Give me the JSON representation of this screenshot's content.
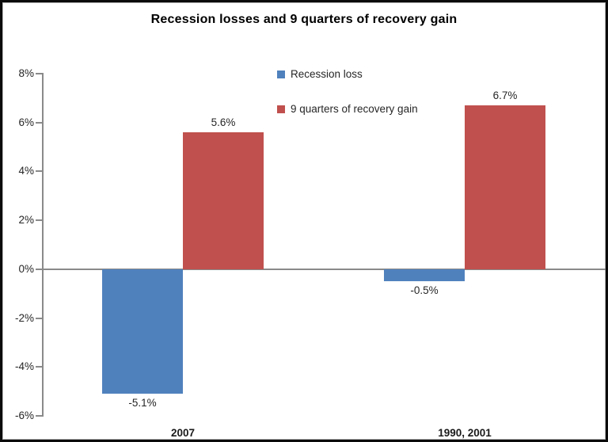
{
  "chart_data": {
    "type": "bar",
    "title": "Recession losses and 9 quarters of recovery gain",
    "categories": [
      "2007",
      "1990, 2001"
    ],
    "series": [
      {
        "name": "Recession loss",
        "color": "#4F81BD",
        "values": [
          -5.1,
          -0.5
        ],
        "labels": [
          "-5.1%",
          "-0.5%"
        ]
      },
      {
        "name": "9 quarters of recovery gain",
        "color": "#C0504D",
        "values": [
          5.6,
          6.7
        ],
        "labels": [
          "5.6%",
          "6.7%"
        ]
      }
    ],
    "y_axis": {
      "min": -6,
      "max": 8,
      "step": 2,
      "tick_labels": [
        "8%",
        "6%",
        "4%",
        "2%",
        "0%",
        "-2%",
        "-4%",
        "-6%"
      ]
    },
    "ylim": [
      -6,
      8
    ],
    "grid": "zero-line-only",
    "legend": {
      "position": "top-center",
      "items": [
        "Recession loss",
        "9 quarters of recovery gain"
      ]
    },
    "colors": {
      "axis_line": "#8a8a8a",
      "label_text": "#262626",
      "title_text": "#000000",
      "background": "#ffffff",
      "frame_border": "#0b0b0b"
    }
  }
}
